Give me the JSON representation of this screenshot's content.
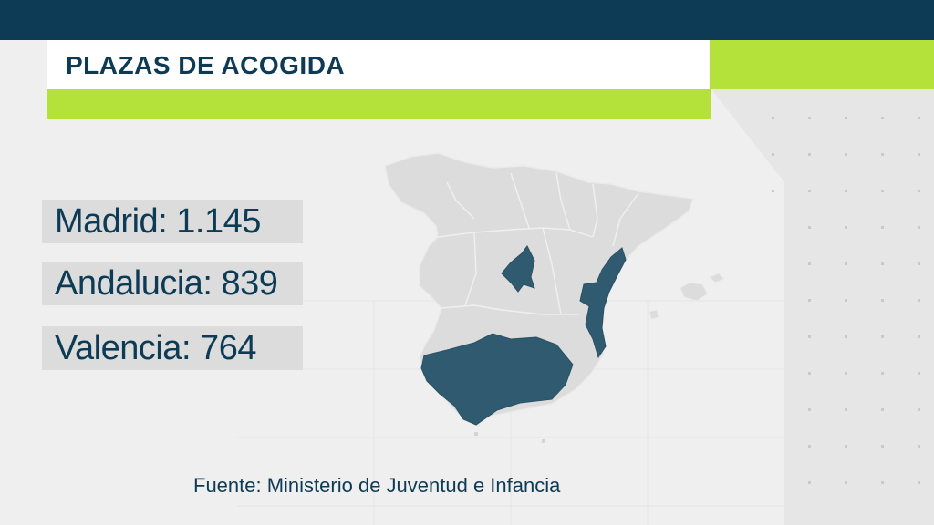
{
  "title": "PLAZAS DE ACOGIDA",
  "stats": [
    {
      "label": "Madrid: 1.145"
    },
    {
      "label": "Andalucia: 839"
    },
    {
      "label": "Valencia: 764"
    }
  ],
  "source": "Fuente: Ministerio de Juventud e Infancia",
  "colors": {
    "dark_blue": "#0d3b55",
    "lime": "#b4e23a",
    "highlight_region": "#305a6f",
    "map_base": "#dcdcdc"
  },
  "map": {
    "country": "Spain",
    "highlighted_regions": [
      "Madrid",
      "Andalucia",
      "Valencia"
    ]
  }
}
